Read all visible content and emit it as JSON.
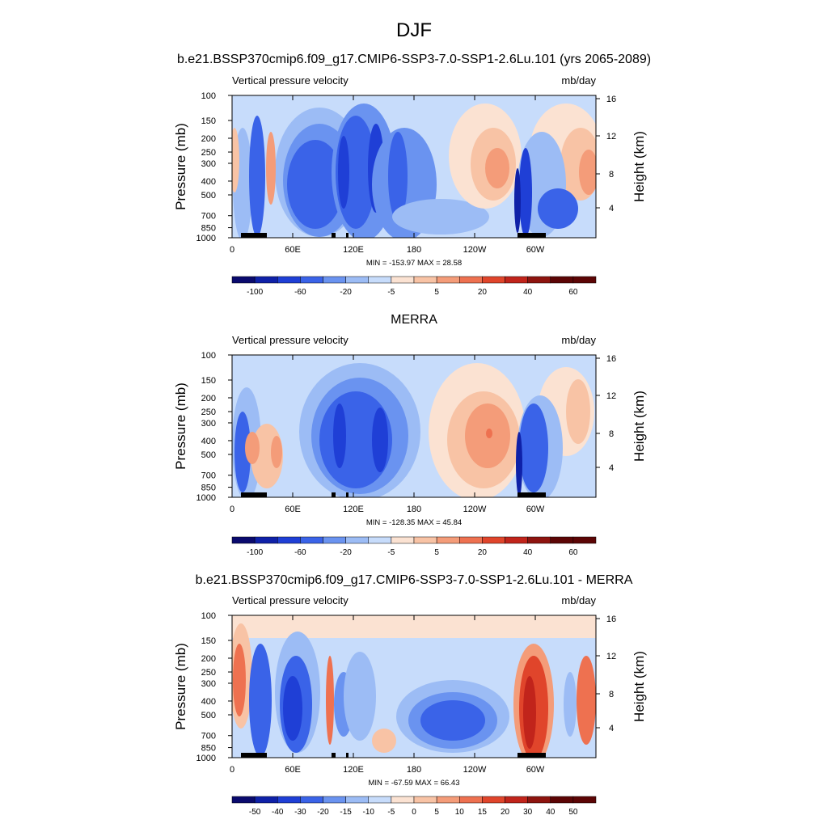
{
  "figure": {
    "title": "DJF",
    "colors": {
      "seq_div_main": [
        "#0a0a6e",
        "#0f21a8",
        "#1f3fd6",
        "#3a63e8",
        "#6a93f0",
        "#9cbcf5",
        "#c7dcfb",
        "#fbe2d2",
        "#f8c3a5",
        "#f49c79",
        "#ee7150",
        "#e0452b",
        "#c1241b",
        "#8e140f",
        "#5c0505"
      ],
      "seq_div_diff": [
        "#0a0a6e",
        "#0f21a8",
        "#1f3fd6",
        "#3a63e8",
        "#6a93f0",
        "#9cbcf5",
        "#c7dcfb",
        "#fbe2d2",
        "#f8c3a5",
        "#f49c79",
        "#ee7150",
        "#e0452b",
        "#c1241b",
        "#8e140f",
        "#5c0505"
      ]
    }
  },
  "chart_data": [
    {
      "type": "heatmap",
      "title": "b.e21.BSSP370cmip6.f09_g17.CMIP6-SSP3-7.0-SSP1-2.6Lu.101 (yrs 2065-2089)",
      "left_string": "Vertical pressure velocity",
      "right_string": "mb/day",
      "ylabel": "Pressure (mb)",
      "ylabel_right": "Height (km)",
      "x_ticks": [
        "0",
        "60E",
        "120E",
        "180",
        "120W",
        "60W"
      ],
      "y_ticks": [
        "100",
        "150",
        "200",
        "250",
        "300",
        "400",
        "500",
        "700",
        "850",
        "1000"
      ],
      "y_right_ticks": [
        "16",
        "12",
        "8",
        "4"
      ],
      "stats": "MIN = -153.97  MAX =  28.58",
      "colorbar_labels": [
        "-100",
        "-60",
        "-20",
        "-5",
        "5",
        "20",
        "40",
        "60"
      ],
      "grid": false
    },
    {
      "type": "heatmap",
      "title": "MERRA",
      "left_string": "Vertical pressure velocity",
      "right_string": "mb/day",
      "ylabel": "Pressure (mb)",
      "ylabel_right": "Height (km)",
      "x_ticks": [
        "0",
        "60E",
        "120E",
        "180",
        "120W",
        "60W"
      ],
      "y_ticks": [
        "100",
        "150",
        "200",
        "250",
        "300",
        "400",
        "500",
        "700",
        "850",
        "1000"
      ],
      "y_right_ticks": [
        "16",
        "12",
        "8",
        "4"
      ],
      "stats": "MIN = -128.35  MAX =  45.84",
      "colorbar_labels": [
        "-100",
        "-60",
        "-20",
        "-5",
        "5",
        "20",
        "40",
        "60"
      ],
      "grid": false
    },
    {
      "type": "heatmap",
      "title": "b.e21.BSSP370cmip6.f09_g17.CMIP6-SSP3-7.0-SSP1-2.6Lu.101 - MERRA",
      "left_string": "Vertical pressure velocity",
      "right_string": "mb/day",
      "ylabel": "Pressure (mb)",
      "ylabel_right": "Height (km)",
      "x_ticks": [
        "0",
        "60E",
        "120E",
        "180",
        "120W",
        "60W"
      ],
      "y_ticks": [
        "100",
        "150",
        "200",
        "250",
        "300",
        "400",
        "500",
        "700",
        "850",
        "1000"
      ],
      "y_right_ticks": [
        "16",
        "12",
        "8",
        "4"
      ],
      "stats": "MIN = -67.59  MAX = 66.43",
      "colorbar_labels": [
        "-50",
        "-40",
        "-30",
        "-20",
        "-15",
        "-10",
        "-5",
        "0",
        "5",
        "10",
        "15",
        "20",
        "30",
        "40",
        "50"
      ],
      "grid": false
    }
  ]
}
